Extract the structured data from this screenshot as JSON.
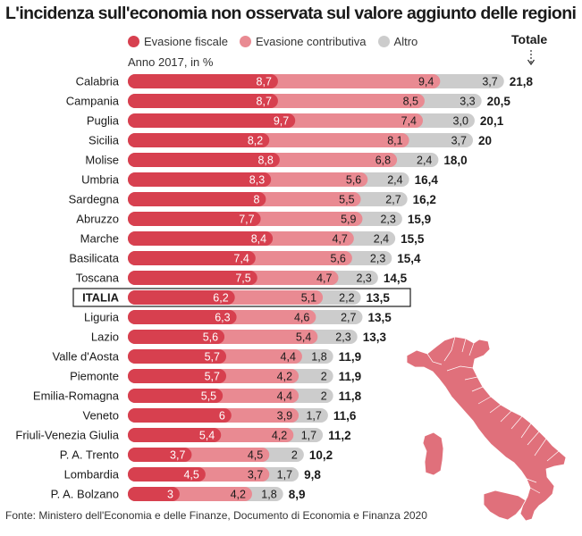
{
  "title": "L'incidenza sull'economia non osservata sul valore aggiunto delle regioni",
  "subtitle": "Anno 2017, in %",
  "total_label": "Totale",
  "source": "Fonte: Ministero dell'Economia e delle Finanze, Documento di Economia e Finanza 2020",
  "colors": {
    "fiscale": "#d7404f",
    "contributiva": "#e98a92",
    "altro": "#cccccc",
    "map": "#e0707b"
  },
  "chart_data": {
    "type": "bar",
    "orientation": "horizontal",
    "stacked": true,
    "title": "L'incidenza sull'economia non osservata sul valore aggiunto delle regioni",
    "subtitle": "Anno 2017, in %",
    "highlight": "ITALIA",
    "categories": [
      "Calabria",
      "Campania",
      "Puglia",
      "Sicilia",
      "Molise",
      "Umbria",
      "Sardegna",
      "Abruzzo",
      "Marche",
      "Basilicata",
      "Toscana",
      "ITALIA",
      "Liguria",
      "Lazio",
      "Valle d'Aosta",
      "Piemonte",
      "Emilia-Romagna",
      "Veneto",
      "Friuli-Venezia Giulia",
      "P. A. Trento",
      "Lombardia",
      "P. A. Bolzano"
    ],
    "series": [
      {
        "name": "Evasione fiscale",
        "values": [
          8.7,
          8.7,
          9.7,
          8.2,
          8.8,
          8.3,
          8,
          7.7,
          8.4,
          7.4,
          7.5,
          6.2,
          6.3,
          5.6,
          5.7,
          5.7,
          5.5,
          6,
          5.4,
          3.7,
          4.5,
          3
        ],
        "labels": [
          "8,7",
          "8,7",
          "9,7",
          "8,2",
          "8,8",
          "8,3",
          "8",
          "7,7",
          "8,4",
          "7,4",
          "7,5",
          "6,2",
          "6,3",
          "5,6",
          "5,7",
          "5,7",
          "5,5",
          "6",
          "5,4",
          "3,7",
          "4,5",
          "3"
        ]
      },
      {
        "name": "Evasione contributiva",
        "values": [
          9.4,
          8.5,
          7.4,
          8.1,
          6.8,
          5.6,
          5.5,
          5.9,
          4.7,
          5.6,
          4.7,
          5.1,
          4.6,
          5.4,
          4.4,
          4.2,
          4.4,
          3.9,
          4.2,
          4.5,
          3.7,
          4.2
        ],
        "labels": [
          "9,4",
          "8,5",
          "7,4",
          "8,1",
          "6,8",
          "5,6",
          "5,5",
          "5,9",
          "4,7",
          "5,6",
          "4,7",
          "5,1",
          "4,6",
          "5,4",
          "4,4",
          "4,2",
          "4,4",
          "3,9",
          "4,2",
          "4,5",
          "3,7",
          "4,2"
        ]
      },
      {
        "name": "Altro",
        "values": [
          3.7,
          3.3,
          3.0,
          3.7,
          2.4,
          2.4,
          2.7,
          2.3,
          2.4,
          2.3,
          2.3,
          2.2,
          2.7,
          2.3,
          1.8,
          2,
          2,
          1.7,
          1.7,
          2,
          1.7,
          1.8
        ],
        "labels": [
          "3,7",
          "3,3",
          "3,0",
          "3,7",
          "2,4",
          "2,4",
          "2,7",
          "2,3",
          "2,4",
          "2,3",
          "2,3",
          "2,2",
          "2,7",
          "2,3",
          "1,8",
          "2",
          "2",
          "1,7",
          "1,7",
          "2",
          "1,7",
          "1,8"
        ]
      }
    ],
    "totals": [
      21.8,
      20.5,
      20.1,
      20,
      18.0,
      16.4,
      16.2,
      15.9,
      15.5,
      15.4,
      14.5,
      13.5,
      13.5,
      13.3,
      11.9,
      11.9,
      11.8,
      11.6,
      11.2,
      10.2,
      9.8,
      8.9
    ],
    "total_labels": [
      "21,8",
      "20,5",
      "20,1",
      "20",
      "18,0",
      "16,4",
      "16,2",
      "15,9",
      "15,5",
      "15,4",
      "14,5",
      "13,5",
      "13,5",
      "13,3",
      "11,9",
      "11,9",
      "11,8",
      "11,6",
      "11,2",
      "10,2",
      "9,8",
      "8,9"
    ],
    "xlabel": "",
    "ylabel": "",
    "xlim": [
      0,
      22
    ]
  }
}
